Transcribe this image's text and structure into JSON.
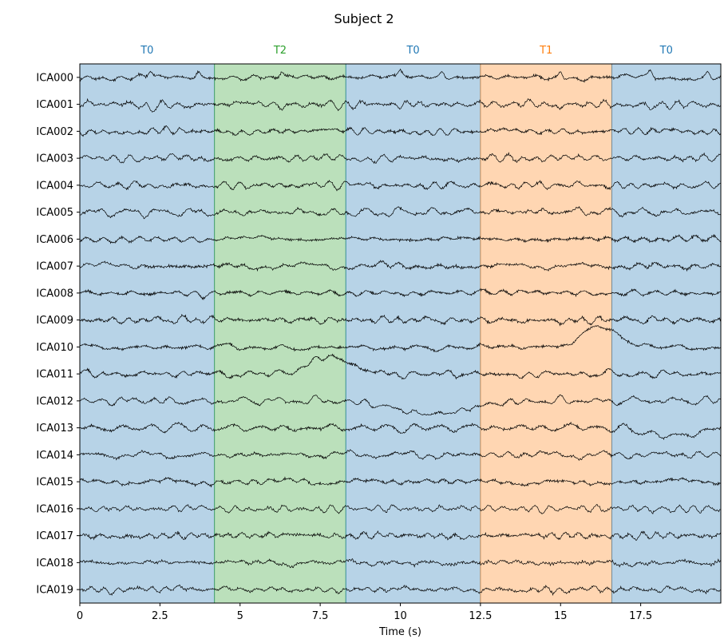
{
  "chart_data": {
    "type": "line",
    "title": "Subject 2",
    "xlabel": "Time (s)",
    "ylabel": "",
    "xlim": [
      0,
      20
    ],
    "xticks": [
      0,
      2.5,
      5,
      7.5,
      10,
      12.5,
      15,
      17.5
    ],
    "xtick_labels": [
      "0",
      "2.5",
      "5",
      "7.5",
      "10",
      "12.5",
      "15",
      "17.5"
    ],
    "grid": false,
    "channels": [
      "ICA000",
      "ICA001",
      "ICA002",
      "ICA003",
      "ICA004",
      "ICA005",
      "ICA006",
      "ICA007",
      "ICA008",
      "ICA009",
      "ICA010",
      "ICA011",
      "ICA012",
      "ICA013",
      "ICA014",
      "ICA015",
      "ICA016",
      "ICA017",
      "ICA018",
      "ICA019"
    ],
    "annotations": [
      {
        "label": "T0",
        "start": 0.0,
        "end": 4.2,
        "color": "#1f77b4"
      },
      {
        "label": "T2",
        "start": 4.2,
        "end": 8.3,
        "color": "#2ca02c"
      },
      {
        "label": "T0",
        "start": 8.3,
        "end": 12.5,
        "color": "#1f77b4"
      },
      {
        "label": "T1",
        "start": 12.5,
        "end": 16.6,
        "color": "#ff7f0e"
      },
      {
        "label": "T0",
        "start": 16.6,
        "end": 20.0,
        "color": "#1f77b4"
      }
    ],
    "trace_color": "#000000"
  }
}
